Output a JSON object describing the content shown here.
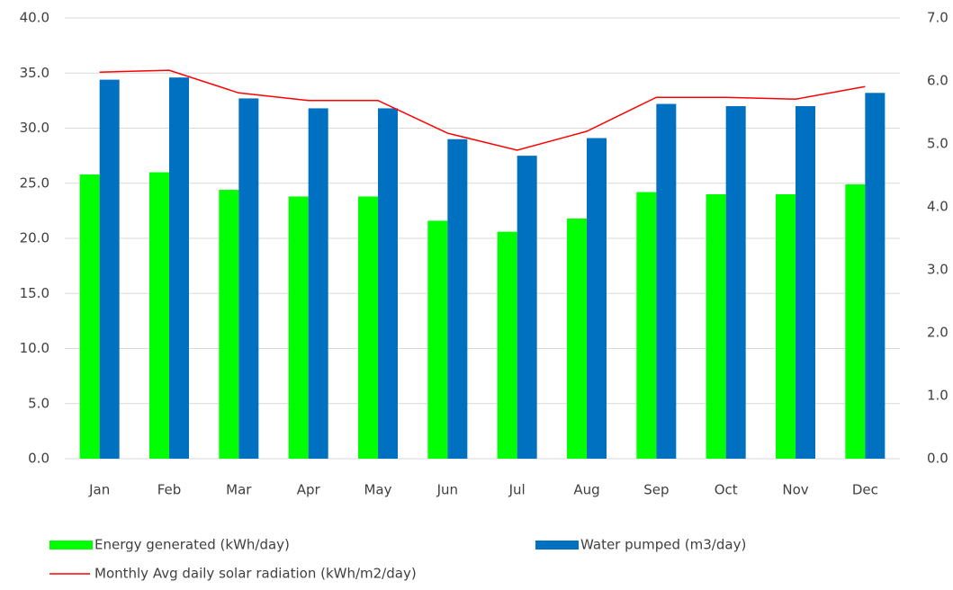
{
  "chart_data": {
    "type": "bar",
    "categories": [
      "Jan",
      "Feb",
      "Mar",
      "Apr",
      "May",
      "Jun",
      "Jul",
      "Aug",
      "Sep",
      "Oct",
      "Nov",
      "Dec"
    ],
    "series": [
      {
        "name": "Energy generated (kWh/day)",
        "color": "#00ff00",
        "type": "bar",
        "values": [
          25.8,
          26.0,
          24.4,
          23.8,
          23.8,
          21.6,
          20.6,
          21.8,
          24.2,
          24.0,
          24.0,
          24.9
        ]
      },
      {
        "name": "Water pumped (m3/day)",
        "color": "#0070c0",
        "type": "bar",
        "values": [
          34.4,
          34.6,
          32.7,
          31.8,
          31.8,
          29.0,
          27.5,
          29.1,
          32.2,
          32.0,
          32.0,
          33.2
        ]
      },
      {
        "name": "Monthly Avg daily solar radiation (kWh/m2/day)",
        "color": "#ff0000",
        "type": "line",
        "axis": "y2",
        "values": [
          6.14,
          6.17,
          5.81,
          5.69,
          5.69,
          5.17,
          4.9,
          5.2,
          5.74,
          5.74,
          5.71,
          5.91
        ]
      }
    ],
    "ylim": [
      0,
      40
    ],
    "yticks": [
      {
        "value": 0,
        "label": "0.0"
      },
      {
        "value": 5,
        "label": "5.0"
      },
      {
        "value": 10,
        "label": "10.0"
      },
      {
        "value": 15,
        "label": "15.0"
      },
      {
        "value": 20,
        "label": "20.0"
      },
      {
        "value": 25,
        "label": "25.0"
      },
      {
        "value": 30,
        "label": "30.0"
      },
      {
        "value": 35,
        "label": "35.0"
      },
      {
        "value": 40,
        "label": "40.0"
      }
    ],
    "y2lim": [
      0,
      7
    ],
    "y2ticks": [
      {
        "value": 0,
        "label": "0.0"
      },
      {
        "value": 1,
        "label": "1.0"
      },
      {
        "value": 2,
        "label": "2.0"
      },
      {
        "value": 3,
        "label": "3.0"
      },
      {
        "value": 4,
        "label": "4.0"
      },
      {
        "value": 5,
        "label": "5.0"
      },
      {
        "value": 6,
        "label": "6.0"
      },
      {
        "value": 7,
        "label": "7.0"
      }
    ],
    "grid": true
  }
}
